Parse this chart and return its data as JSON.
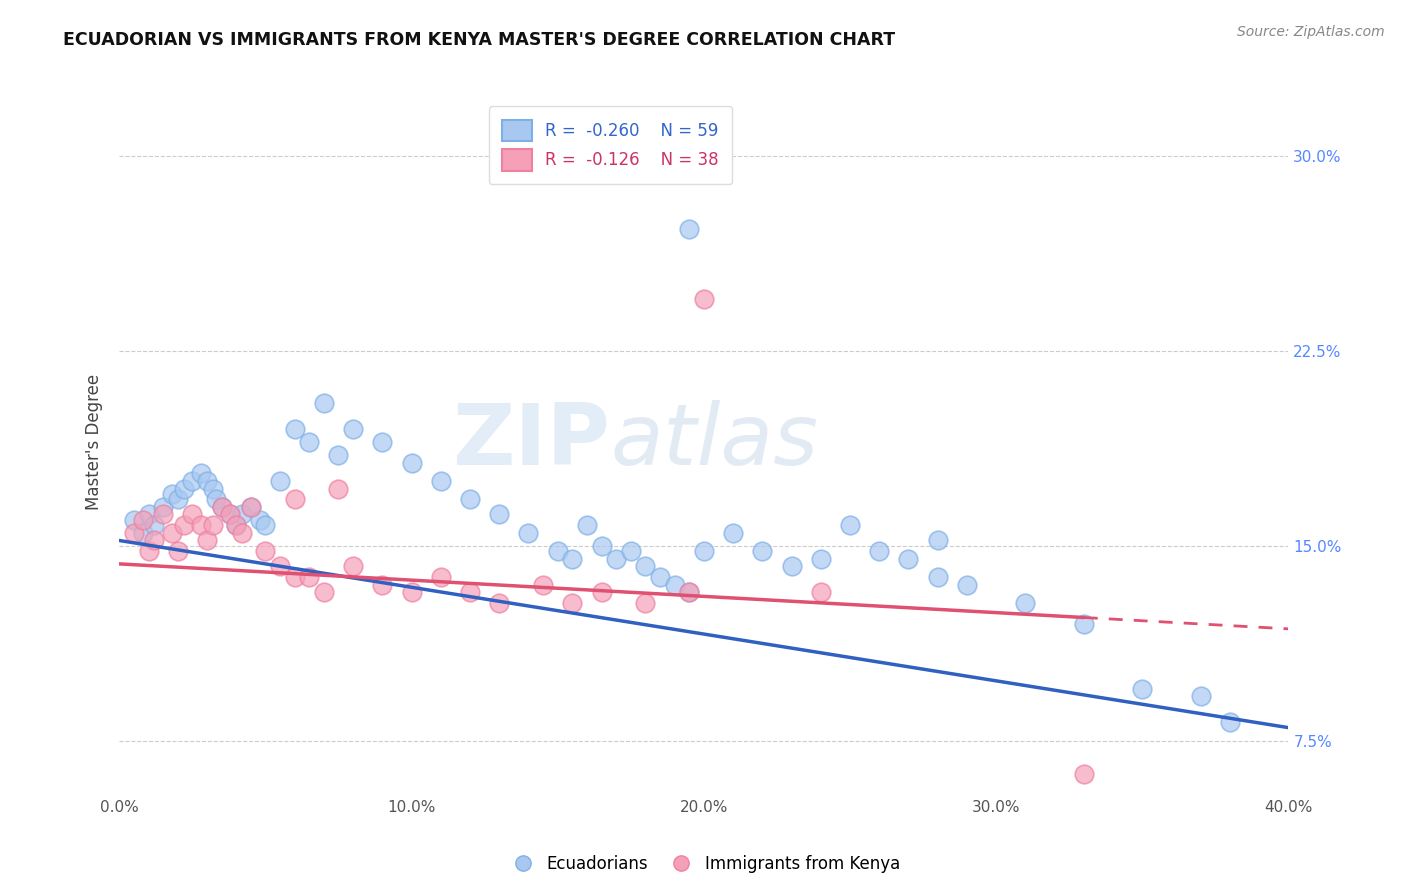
{
  "title": "ECUADORIAN VS IMMIGRANTS FROM KENYA MASTER'S DEGREE CORRELATION CHART",
  "source": "Source: ZipAtlas.com",
  "ylabel": "Master's Degree",
  "xlim": [
    0.0,
    0.4
  ],
  "ylim": [
    0.055,
    0.325
  ],
  "xticks": [
    0.0,
    0.1,
    0.2,
    0.3,
    0.4
  ],
  "xtick_labels": [
    "0.0%",
    "10.0%",
    "20.0%",
    "30.0%",
    "40.0%"
  ],
  "yticks": [
    0.075,
    0.15,
    0.225,
    0.3
  ],
  "ytick_labels": [
    "7.5%",
    "15.0%",
    "22.5%",
    "30.0%"
  ],
  "blue_R": -0.26,
  "blue_N": 59,
  "pink_R": -0.126,
  "pink_N": 38,
  "blue_color": "#A8C8F0",
  "pink_color": "#F5A0B8",
  "blue_edge_color": "#7EB0E8",
  "pink_edge_color": "#EE80A0",
  "blue_line_color": "#3060C0",
  "pink_line_color": "#E05070",
  "legend_label_blue": "Ecuadorians",
  "legend_label_pink": "Immigrants from Kenya",
  "blue_x": [
    0.005,
    0.008,
    0.01,
    0.012,
    0.015,
    0.018,
    0.02,
    0.022,
    0.025,
    0.028,
    0.03,
    0.032,
    0.033,
    0.035,
    0.038,
    0.04,
    0.042,
    0.045,
    0.048,
    0.05,
    0.055,
    0.06,
    0.065,
    0.07,
    0.075,
    0.08,
    0.09,
    0.1,
    0.11,
    0.12,
    0.13,
    0.14,
    0.15,
    0.155,
    0.16,
    0.165,
    0.17,
    0.175,
    0.18,
    0.185,
    0.19,
    0.195,
    0.2,
    0.21,
    0.22,
    0.23,
    0.24,
    0.25,
    0.26,
    0.27,
    0.28,
    0.29,
    0.31,
    0.33,
    0.35,
    0.37,
    0.38,
    0.195,
    0.28
  ],
  "blue_y": [
    0.16,
    0.155,
    0.162,
    0.158,
    0.165,
    0.17,
    0.168,
    0.172,
    0.175,
    0.178,
    0.175,
    0.172,
    0.168,
    0.165,
    0.162,
    0.158,
    0.162,
    0.165,
    0.16,
    0.158,
    0.175,
    0.195,
    0.19,
    0.205,
    0.185,
    0.195,
    0.19,
    0.182,
    0.175,
    0.168,
    0.162,
    0.155,
    0.148,
    0.145,
    0.158,
    0.15,
    0.145,
    0.148,
    0.142,
    0.138,
    0.135,
    0.132,
    0.148,
    0.155,
    0.148,
    0.142,
    0.145,
    0.158,
    0.148,
    0.145,
    0.138,
    0.135,
    0.128,
    0.12,
    0.095,
    0.092,
    0.082,
    0.272,
    0.152
  ],
  "pink_x": [
    0.005,
    0.008,
    0.01,
    0.012,
    0.015,
    0.018,
    0.02,
    0.022,
    0.025,
    0.028,
    0.03,
    0.032,
    0.035,
    0.038,
    0.04,
    0.042,
    0.045,
    0.05,
    0.055,
    0.06,
    0.065,
    0.07,
    0.08,
    0.09,
    0.1,
    0.11,
    0.12,
    0.13,
    0.145,
    0.155,
    0.165,
    0.18,
    0.2,
    0.24,
    0.33,
    0.06,
    0.075,
    0.195
  ],
  "pink_y": [
    0.155,
    0.16,
    0.148,
    0.152,
    0.162,
    0.155,
    0.148,
    0.158,
    0.162,
    0.158,
    0.152,
    0.158,
    0.165,
    0.162,
    0.158,
    0.155,
    0.165,
    0.148,
    0.142,
    0.138,
    0.138,
    0.132,
    0.142,
    0.135,
    0.132,
    0.138,
    0.132,
    0.128,
    0.135,
    0.128,
    0.132,
    0.128,
    0.245,
    0.132,
    0.062,
    0.168,
    0.172,
    0.132
  ],
  "watermark_zip": "ZIP",
  "watermark_atlas": "atlas",
  "background_color": "#FFFFFF",
  "grid_color": "#CCCCCC",
  "blue_line_start_x": 0.0,
  "blue_line_start_y": 0.152,
  "blue_line_end_x": 0.4,
  "blue_line_end_y": 0.08,
  "pink_line_start_x": 0.0,
  "pink_line_start_y": 0.143,
  "pink_line_end_x": 0.4,
  "pink_line_end_y": 0.118
}
